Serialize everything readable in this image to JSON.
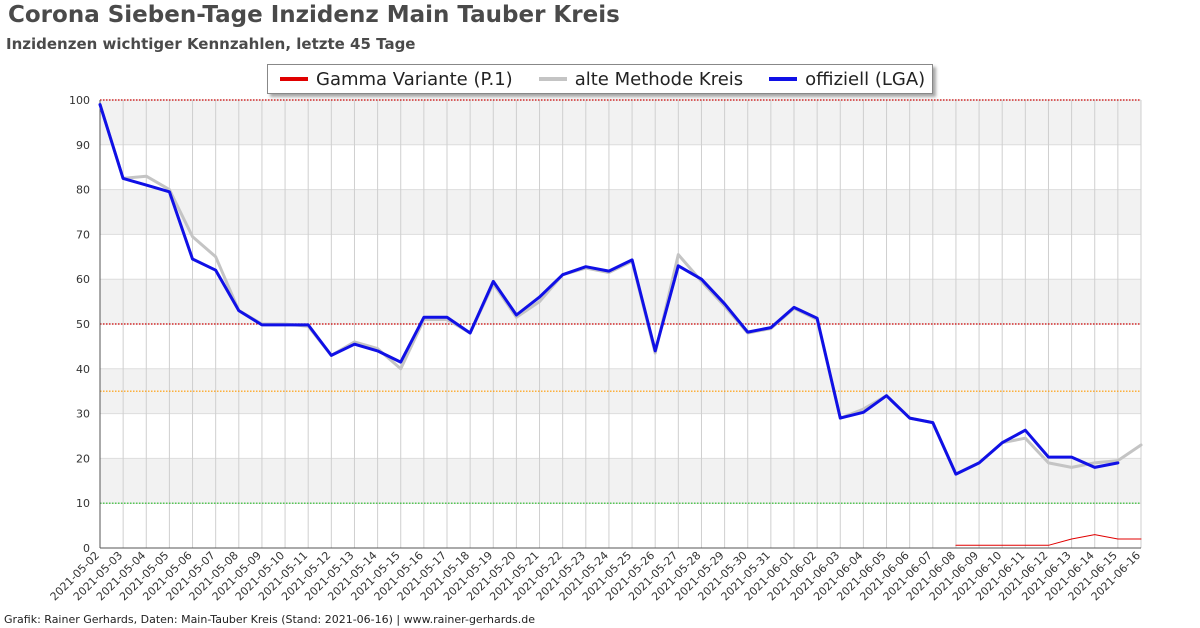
{
  "title": "Corona Sieben-Tage Inzidenz Main Tauber Kreis",
  "subtitle": "Inzidenzen wichtiger Kennzahlen, letzte 45 Tage",
  "footer": "Grafik: Rainer Gerhards, Daten: Main-Tauber Kreis (Stand: 2021-06-16) | www.rainer-gerhards.de",
  "legend": [
    {
      "label": "Gamma Variante (P.1)",
      "color": "#e00000"
    },
    {
      "label": "alte Methode Kreis",
      "color": "#c4c4c4"
    },
    {
      "label": "offiziell (LGA)",
      "color": "#1010e6"
    }
  ],
  "chart_data": {
    "type": "line",
    "title": "Corona Sieben-Tage Inzidenz Main Tauber Kreis",
    "xlabel": "",
    "ylabel": "",
    "ylim": [
      0,
      100
    ],
    "yticks": [
      0,
      10,
      20,
      30,
      40,
      50,
      60,
      70,
      80,
      90,
      100
    ],
    "grid": true,
    "legend_position": "top-center",
    "x": [
      "2021-05-02",
      "2021-05-03",
      "2021-05-04",
      "2021-05-05",
      "2021-05-06",
      "2021-05-07",
      "2021-05-08",
      "2021-05-09",
      "2021-05-10",
      "2021-05-11",
      "2021-05-12",
      "2021-05-13",
      "2021-05-14",
      "2021-05-15",
      "2021-05-16",
      "2021-05-17",
      "2021-05-18",
      "2021-05-19",
      "2021-05-20",
      "2021-05-21",
      "2021-05-22",
      "2021-05-23",
      "2021-05-24",
      "2021-05-25",
      "2021-05-26",
      "2021-05-27",
      "2021-05-28",
      "2021-05-29",
      "2021-05-30",
      "2021-05-31",
      "2021-06-01",
      "2021-06-02",
      "2021-06-03",
      "2021-06-04",
      "2021-06-05",
      "2021-06-06",
      "2021-06-07",
      "2021-06-08",
      "2021-06-09",
      "2021-06-10",
      "2021-06-11",
      "2021-06-12",
      "2021-06-13",
      "2021-06-14",
      "2021-06-15",
      "2021-06-16"
    ],
    "threshold_lines": [
      {
        "value": 100,
        "color": "#cc0000"
      },
      {
        "value": 50,
        "color": "#cc0000"
      },
      {
        "value": 35,
        "color": "#ff9900"
      },
      {
        "value": 10,
        "color": "#22bb22"
      }
    ],
    "series": [
      {
        "name": "alte Methode Kreis",
        "color": "#c4c4c4",
        "width": 3,
        "values": [
          99,
          82.5,
          83,
          80,
          69.5,
          65,
          53,
          50,
          50,
          49.5,
          43,
          46,
          44.5,
          40,
          51,
          51,
          48,
          59,
          51.5,
          55,
          61,
          62.5,
          61.5,
          64,
          43.5,
          65.5,
          59.5,
          54,
          48,
          49,
          53.5,
          51,
          29,
          31,
          34,
          29,
          28,
          16.5,
          19,
          23.5,
          24.5,
          19,
          18,
          19,
          19.5,
          23
        ]
      },
      {
        "name": "offiziell (LGA)",
        "color": "#1010e6",
        "width": 3,
        "values": [
          99,
          82.5,
          81,
          79.5,
          64.5,
          62,
          53,
          49.8,
          49.8,
          49.8,
          43,
          45.5,
          44,
          41.5,
          51.5,
          51.5,
          48,
          59.5,
          52,
          56,
          61,
          62.8,
          61.8,
          64.3,
          44,
          63,
          60,
          54.5,
          48.2,
          49.2,
          53.7,
          51.3,
          29,
          30.3,
          34,
          29,
          28,
          16.5,
          19,
          23.5,
          26.3,
          20.3,
          20.3,
          18,
          19,
          null
        ]
      },
      {
        "name": "Gamma Variante (P.1)",
        "color": "#e00000",
        "width": 1,
        "values": [
          null,
          null,
          null,
          null,
          null,
          null,
          null,
          null,
          null,
          null,
          null,
          null,
          null,
          null,
          null,
          null,
          null,
          null,
          null,
          null,
          null,
          null,
          null,
          null,
          null,
          null,
          null,
          null,
          null,
          null,
          null,
          null,
          null,
          null,
          null,
          null,
          null,
          0.6,
          0.6,
          0.6,
          0.6,
          0.6,
          2,
          3,
          2,
          2
        ]
      }
    ]
  }
}
